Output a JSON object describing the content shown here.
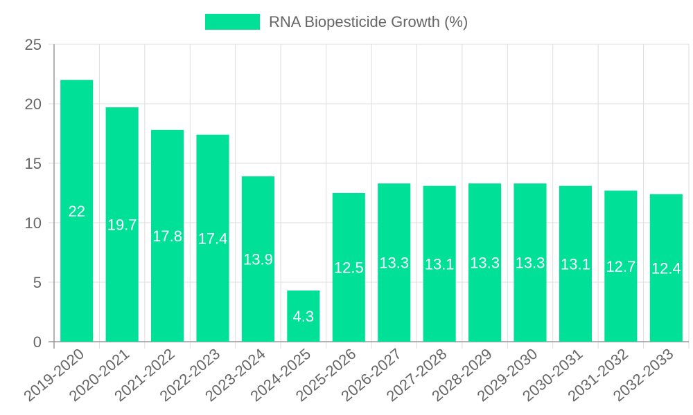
{
  "chart_data": {
    "type": "bar",
    "categories": [
      "2019-2020",
      "2020-2021",
      "2021-2022",
      "2022-2023",
      "2023-2024",
      "2024-2025",
      "2025-2026",
      "2026-2027",
      "2027-2028",
      "2028-2029",
      "2029-2030",
      "2030-2031",
      "2031-2032",
      "2032-2033"
    ],
    "series": [
      {
        "name": "RNA Biopesticide Growth (%)",
        "values": [
          22,
          19.7,
          17.8,
          17.4,
          13.9,
          4.3,
          12.5,
          13.3,
          13.1,
          13.3,
          13.3,
          13.1,
          12.7,
          12.4
        ],
        "color": "#00e096"
      }
    ],
    "ylim": [
      0,
      25
    ],
    "yticks": [
      0,
      5,
      10,
      15,
      20,
      25
    ],
    "grid": true,
    "legend": "top-center",
    "xlabel": "",
    "ylabel": ""
  },
  "colors": {
    "grid": "#dddddd",
    "axis": "#999999",
    "text": "#666666",
    "value_label": "#ffffff"
  }
}
